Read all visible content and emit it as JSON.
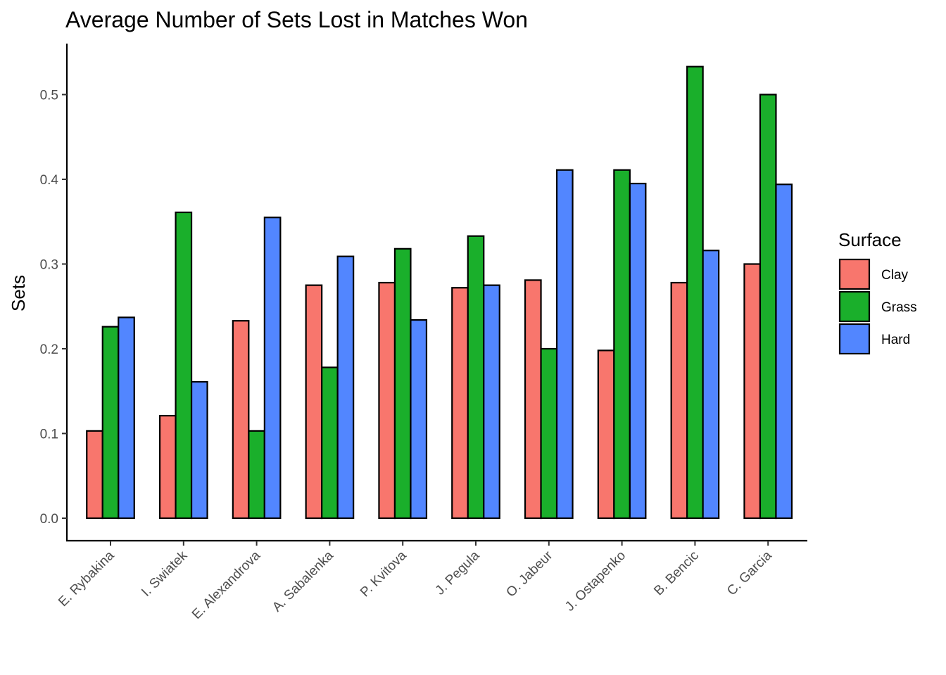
{
  "chart_data": {
    "type": "bar",
    "title": "Average Number of Sets Lost in Matches Won",
    "xlabel": "",
    "ylabel": "Sets",
    "ylim": [
      -0.025,
      0.56
    ],
    "yticks": [
      0.0,
      0.1,
      0.2,
      0.3,
      0.4,
      0.5
    ],
    "ytick_labels": [
      "0.0",
      "0.1",
      "0.2",
      "0.3",
      "0.4",
      "0.5"
    ],
    "grid": false,
    "legend": {
      "title": "Surface",
      "position": "right"
    },
    "categories": [
      "E. Rybakina",
      "I. Swiatek",
      "E. Alexandrova",
      "A. Sabalenka",
      "P. Kvitova",
      "J. Pegula",
      "O. Jabeur",
      "J. Ostapenko",
      "B. Bencic",
      "C. Garcia"
    ],
    "series": [
      {
        "name": "Clay",
        "color": "#F8766D",
        "values": [
          0.103,
          0.121,
          0.233,
          0.275,
          0.278,
          0.272,
          0.281,
          0.198,
          0.278,
          0.3
        ]
      },
      {
        "name": "Grass",
        "color": "#1AAF2B",
        "values": [
          0.226,
          0.361,
          0.103,
          0.178,
          0.318,
          0.333,
          0.2,
          0.411,
          0.533,
          0.5
        ]
      },
      {
        "name": "Hard",
        "color": "#5286FF",
        "values": [
          0.237,
          0.161,
          0.355,
          0.309,
          0.234,
          0.275,
          0.411,
          0.395,
          0.316,
          0.394
        ]
      }
    ]
  }
}
